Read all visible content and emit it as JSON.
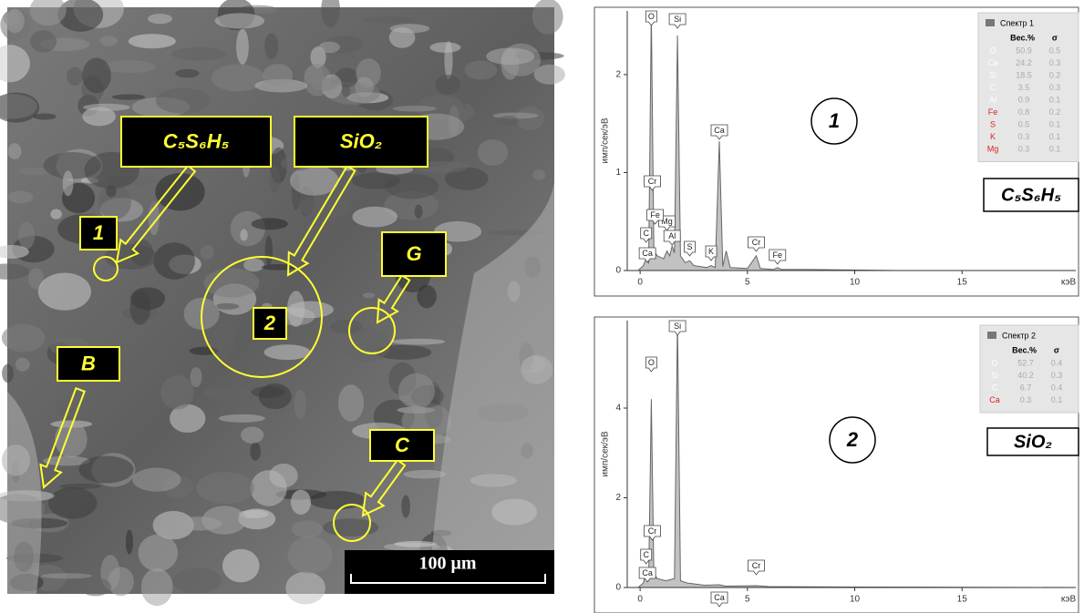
{
  "sem_image": {
    "labels": [
      "C₅S₆H₅",
      "SiO₂",
      "1",
      "G",
      "2",
      "B",
      "C"
    ],
    "scale_bar": "100 μm"
  },
  "chart_data": [
    {
      "type": "line",
      "spectrum": "1",
      "compound": "C₅S₆H₅",
      "ylabel": "имп/сек/эВ",
      "xlabel": "кэВ",
      "color": "#999999",
      "x": [
        -0.1,
        0.15,
        0.28,
        0.4,
        0.52,
        0.64,
        0.8,
        1.1,
        1.25,
        1.38,
        1.49,
        1.6,
        1.74,
        1.88,
        2.1,
        2.31,
        2.5,
        3.1,
        3.31,
        3.5,
        3.69,
        3.85,
        4.01,
        4.2,
        5.0,
        5.41,
        5.6,
        6.2,
        6.4,
        6.6,
        8,
        12,
        20
      ],
      "values": [
        0,
        0.05,
        0.12,
        0.08,
        2.65,
        0.2,
        0.15,
        0.12,
        0.2,
        0.15,
        0.25,
        0.18,
        2.4,
        0.15,
        0.08,
        0.1,
        0.05,
        0.03,
        0.05,
        0.03,
        1.32,
        0.04,
        0.2,
        0.03,
        0.02,
        0.15,
        0.02,
        0.01,
        0.03,
        0.01,
        0.01,
        0,
        0
      ],
      "xlim": [
        -0.6,
        20.3
      ],
      "ylim": [
        0,
        2.65
      ],
      "xticks": [
        0,
        5,
        10,
        15
      ],
      "yticks": [
        0,
        1,
        2
      ],
      "peaks": [
        {
          "label": "O",
          "x": 0.52
        },
        {
          "label": "Si",
          "x": 1.74
        },
        {
          "label": "Cr",
          "x": 0.57
        },
        {
          "label": "Mg",
          "x": 1.25
        },
        {
          "label": "Fe",
          "x": 0.7
        },
        {
          "label": "C",
          "x": 0.28
        },
        {
          "label": "Ca",
          "x": 0.34
        },
        {
          "label": "Al",
          "x": 1.49
        },
        {
          "label": "S",
          "x": 2.31
        },
        {
          "label": "K",
          "x": 3.31
        },
        {
          "label": "Ca",
          "x": 3.69
        },
        {
          "label": "Cr",
          "x": 5.41
        },
        {
          "label": "Fe",
          "x": 6.4
        }
      ],
      "legend": {
        "title": "Спектр 1",
        "headers": [
          "Вес.%",
          "σ"
        ],
        "rows": [
          {
            "element": "O",
            "color": "#ffffff",
            "weight": 50.9,
            "sigma": 0.5
          },
          {
            "element": "Ca",
            "color": "#ffffff",
            "weight": 24.2,
            "sigma": 0.3
          },
          {
            "element": "Si",
            "color": "#ffffff",
            "weight": 18.5,
            "sigma": 0.2
          },
          {
            "element": "C",
            "color": "#ffffff",
            "weight": 3.5,
            "sigma": 0.3
          },
          {
            "element": "Al",
            "color": "#ffffff",
            "weight": 0.9,
            "sigma": 0.1
          },
          {
            "element": "Fe",
            "color": "#e02020",
            "weight": 0.8,
            "sigma": 0.2
          },
          {
            "element": "S",
            "color": "#e02020",
            "weight": 0.5,
            "sigma": 0.1
          },
          {
            "element": "K",
            "color": "#e02020",
            "weight": 0.3,
            "sigma": 0.1
          },
          {
            "element": "Mg",
            "color": "#e02020",
            "weight": 0.3,
            "sigma": 0.1
          }
        ]
      }
    },
    {
      "type": "line",
      "spectrum": "2",
      "compound": "SiO₂",
      "ylabel": "имп/сек/эВ",
      "xlabel": "кэВ",
      "color": "#999999",
      "x": [
        -0.1,
        0.15,
        0.28,
        0.4,
        0.52,
        0.64,
        0.8,
        1.2,
        1.6,
        1.74,
        1.88,
        2.2,
        3,
        3.69,
        4,
        5.41,
        6,
        10,
        20
      ],
      "values": [
        0,
        0.1,
        0.35,
        0.15,
        4.2,
        0.3,
        0.2,
        0.15,
        0.2,
        5.95,
        0.15,
        0.1,
        0.05,
        0.06,
        0.03,
        0.04,
        0.02,
        0.01,
        0
      ],
      "xlim": [
        -0.6,
        20.3
      ],
      "ylim": [
        0,
        5.95
      ],
      "xticks": [
        0,
        5,
        10,
        15
      ],
      "yticks": [
        0,
        2,
        4
      ],
      "peaks": [
        {
          "label": "Si",
          "x": 1.74
        },
        {
          "label": "O",
          "x": 0.52
        },
        {
          "label": "Cr",
          "x": 0.57
        },
        {
          "label": "C",
          "x": 0.28
        },
        {
          "label": "Ca",
          "x": 0.34
        },
        {
          "label": "Ca",
          "x": 3.69
        },
        {
          "label": "Cr",
          "x": 5.41
        }
      ],
      "legend": {
        "title": "Спектр 2",
        "headers": [
          "Вес.%",
          "σ"
        ],
        "rows": [
          {
            "element": "O",
            "color": "#ffffff",
            "weight": 52.7,
            "sigma": 0.4
          },
          {
            "element": "Si",
            "color": "#ffffff",
            "weight": 40.2,
            "sigma": 0.3
          },
          {
            "element": "C",
            "color": "#ffffff",
            "weight": 6.7,
            "sigma": 0.4
          },
          {
            "element": "Ca",
            "color": "#e02020",
            "weight": 0.3,
            "sigma": 0.1
          }
        ]
      }
    }
  ]
}
